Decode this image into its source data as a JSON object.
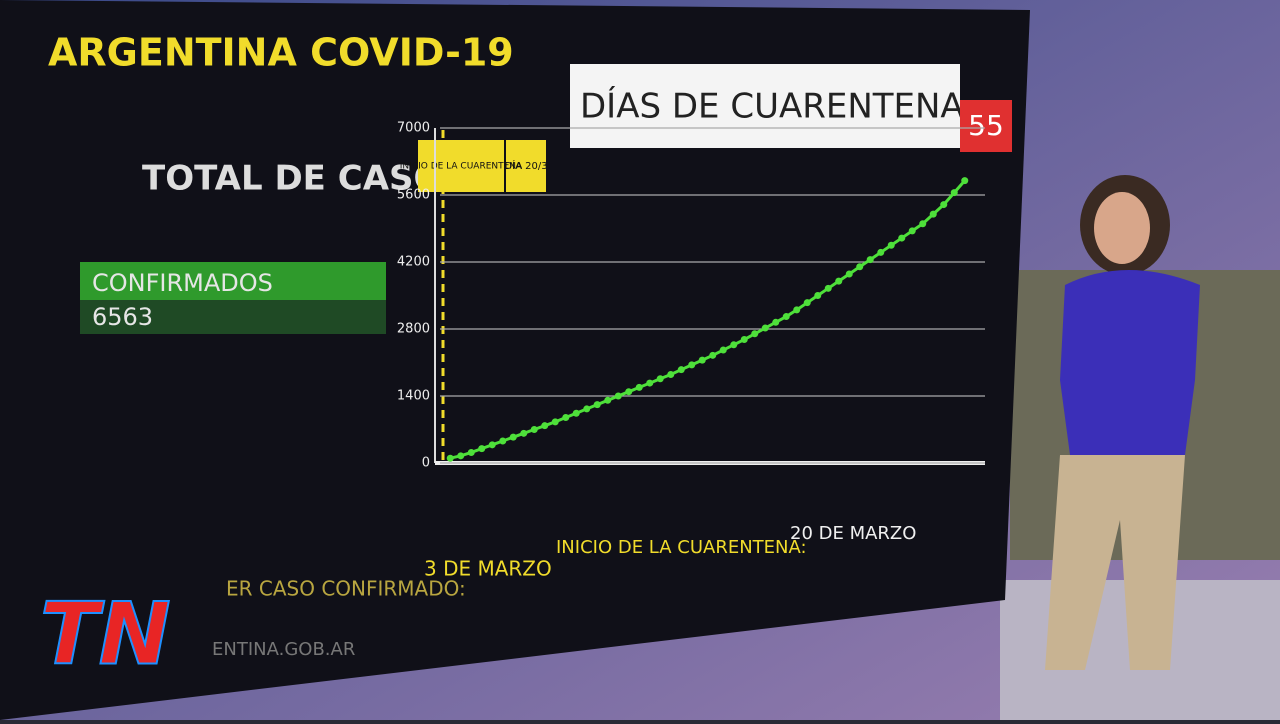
{
  "chart_data": {
    "type": "line",
    "title": "ARGENTINA COVID-19",
    "categories": [
      null,
      null,
      null,
      null,
      null,
      null,
      null,
      null,
      null,
      null,
      null,
      null,
      null,
      null,
      null,
      null,
      null,
      null,
      null,
      null,
      null,
      null,
      null,
      null,
      null,
      null,
      null,
      null,
      null,
      null,
      null,
      null,
      null,
      null,
      null,
      null,
      null,
      null,
      null,
      null,
      null,
      null,
      null,
      null,
      null,
      null,
      null,
      null,
      null,
      null
    ],
    "series": [
      {
        "name": "CONFIRMADOS",
        "color": "#4ee03a",
        "values": [
          100,
          150,
          220,
          300,
          380,
          460,
          540,
          620,
          700,
          780,
          860,
          950,
          1040,
          1130,
          1220,
          1310,
          1400,
          1490,
          1580,
          1670,
          1760,
          1850,
          1950,
          2050,
          2150,
          2250,
          2360,
          2470,
          2580,
          2700,
          2820,
          2940,
          3060,
          3200,
          3350,
          3500,
          3650,
          3800,
          3950,
          4100,
          4250,
          4400,
          4550,
          4700,
          4850,
          5000,
          5200,
          5400,
          5650,
          5900
        ]
      }
    ],
    "ylim": [
      0,
      7000
    ],
    "yticks": [
      0,
      1400,
      2800,
      4200,
      5600,
      7000
    ],
    "grid": true,
    "annotations": [
      "INICIO DE LA CUARENTENA",
      "DÍA 20/3"
    ]
  },
  "header": {
    "subtitle": "DÍAS DE CUARENTENA",
    "days": "55"
  },
  "totals": {
    "heading": "TOTAL DE CASOS:",
    "label": "CONFIRMADOS",
    "value": "6563"
  },
  "footer": {
    "first_case_label": "ER CASO CONFIRMADO:",
    "first_case_date": "3 DE MARZO",
    "quarantine_label": "INICIO DE LA CUARENTENA:",
    "quarantine_date": "20 DE MARZO",
    "source": "ENTINA.GOB.AR"
  },
  "logo": "TN"
}
